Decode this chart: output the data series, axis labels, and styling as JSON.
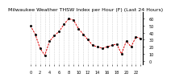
{
  "title": "Milwaukee Weather THSW Index per Hour (F) (Last 24 Hours)",
  "x_values": [
    0,
    1,
    2,
    3,
    4,
    5,
    6,
    7,
    8,
    9,
    10,
    11,
    12,
    13,
    14,
    15,
    16,
    17,
    18,
    19,
    20,
    21,
    22,
    23
  ],
  "y_values": [
    50,
    38,
    18,
    8,
    28,
    36,
    42,
    52,
    60,
    58,
    46,
    38,
    30,
    22,
    20,
    18,
    20,
    22,
    24,
    10,
    28,
    20,
    34,
    32
  ],
  "ylim": [
    -5,
    70
  ],
  "ytick_values": [
    0,
    10,
    20,
    30,
    40,
    50,
    60
  ],
  "ytick_labels": [
    "0",
    "10",
    "20",
    "30",
    "40",
    "50",
    "60"
  ],
  "line_color": "#dd0000",
  "marker_color": "#000000",
  "bg_color": "#ffffff",
  "grid_color": "#bbbbbb",
  "title_fontsize": 4.5,
  "tick_fontsize": 3.5,
  "right_spine_color": "#000000"
}
